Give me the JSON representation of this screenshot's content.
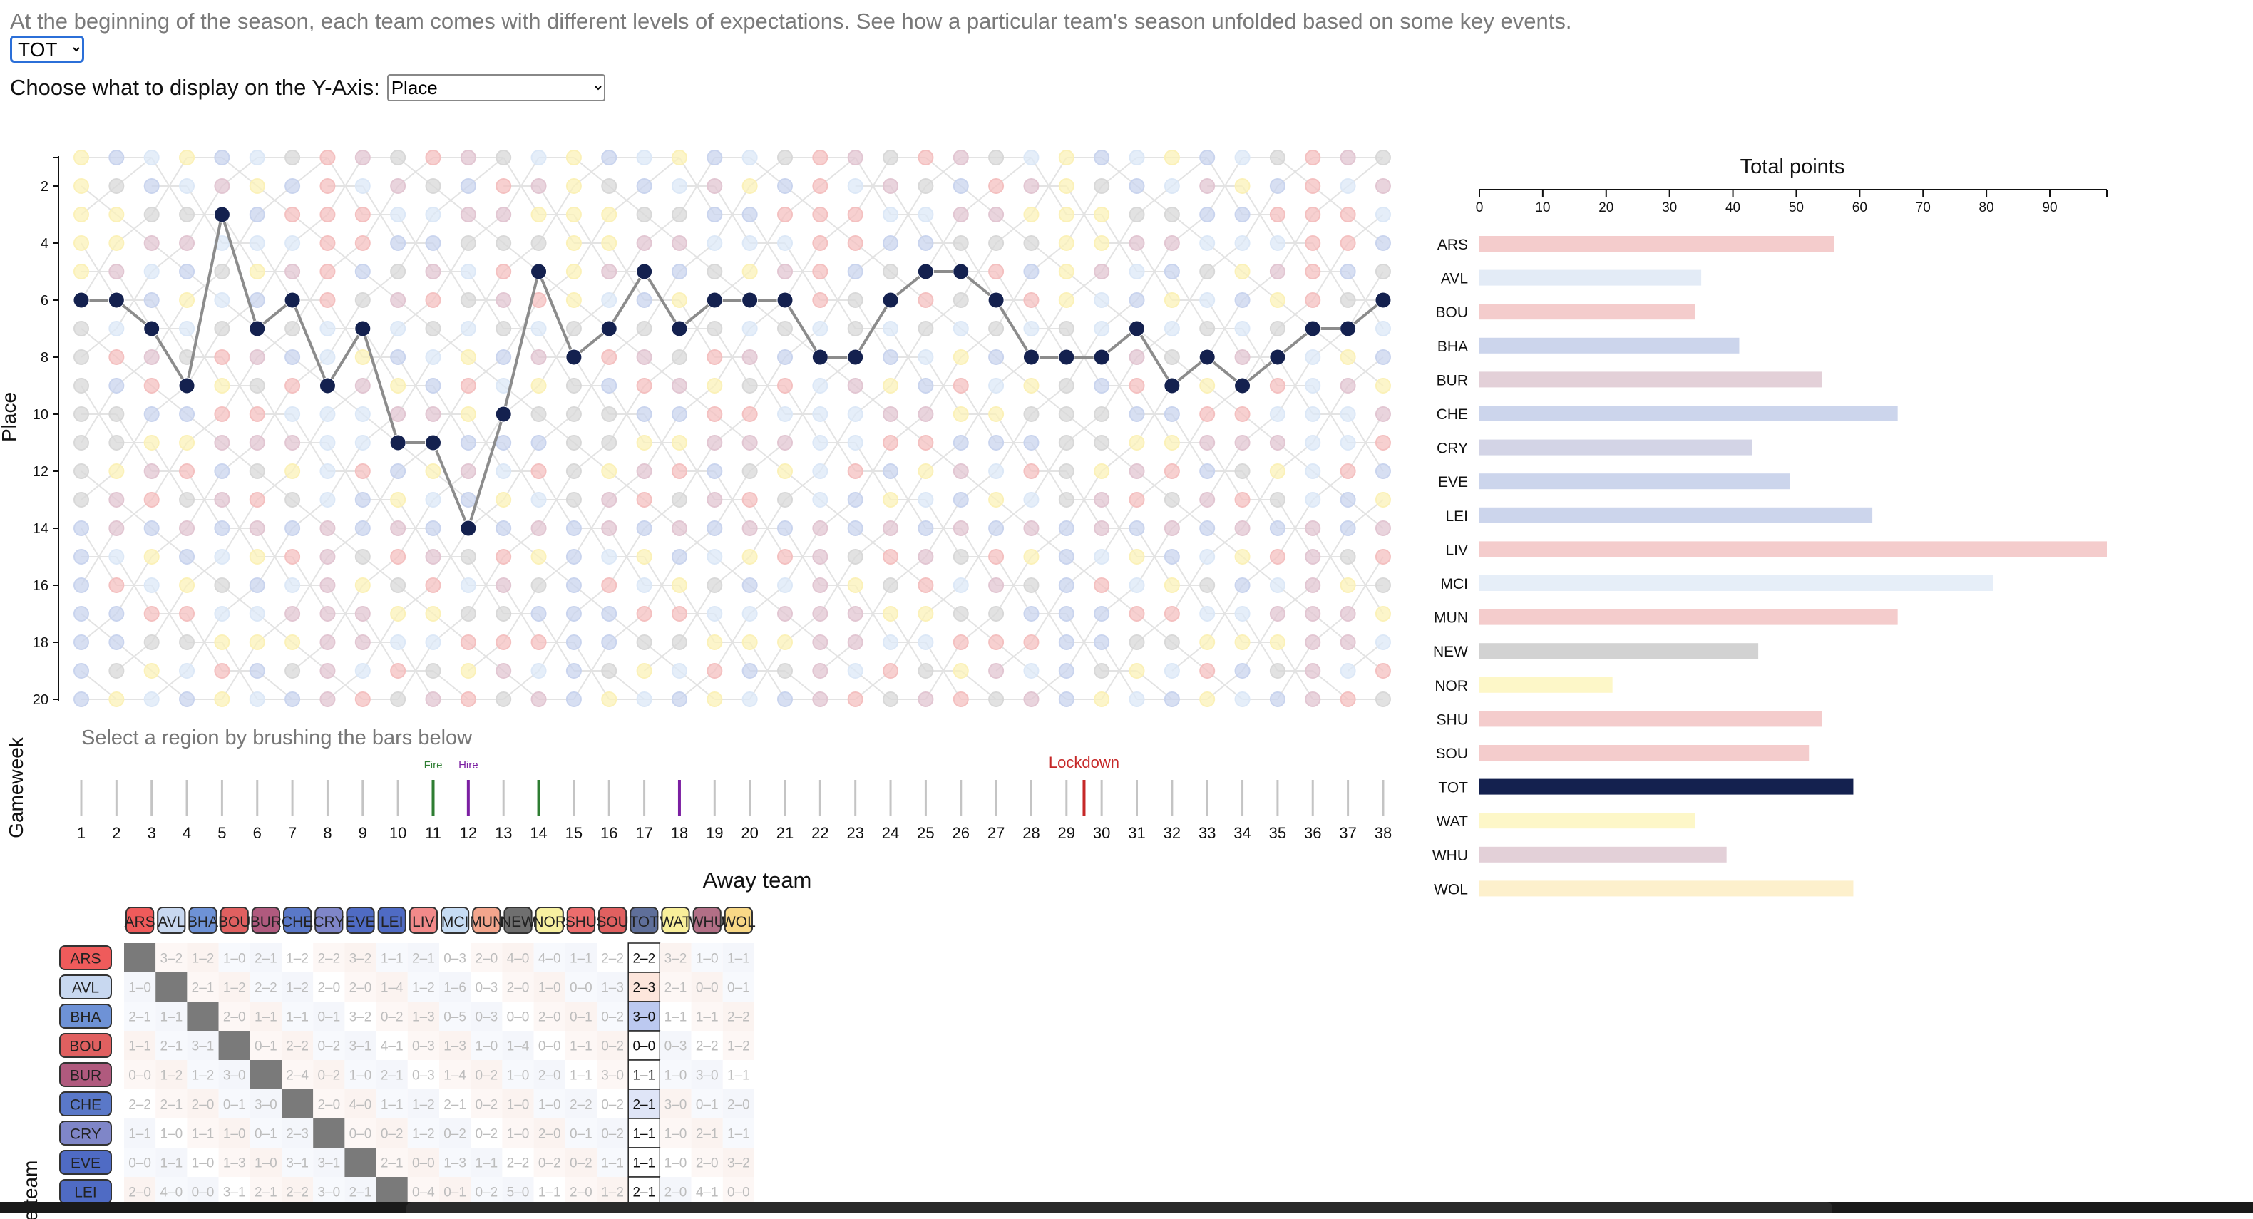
{
  "intro_text": "At the beginning of the season, each team comes with different levels of expectations. See how a particular team's season unfolded based on some key events.",
  "team_selector": {
    "selected": "TOT"
  },
  "yaxis_selector": {
    "label": "Choose what to display on the Y-Axis:",
    "selected": "Place"
  },
  "colors": {
    "highlight": "#14214f",
    "line": "#8c8c8c",
    "fire": "#2e7d32",
    "hire": "#7b1fa2",
    "lockdown": "#c62828"
  },
  "chart_data": [
    {
      "type": "scatter",
      "title": "",
      "ylabel": "Place",
      "xlabel": "",
      "ylim": [
        20,
        1
      ],
      "yticks": [
        2,
        4,
        6,
        8,
        10,
        12,
        14,
        16,
        18,
        20
      ],
      "xlim": [
        1,
        38
      ],
      "highlight_team": "TOT",
      "series": [
        {
          "name": "TOT",
          "x": [
            1,
            2,
            3,
            4,
            5,
            6,
            7,
            8,
            9,
            10,
            11,
            12,
            13,
            14,
            15,
            16,
            17,
            18,
            19,
            20,
            21,
            22,
            23,
            24,
            25,
            26,
            27,
            28,
            29,
            30,
            31,
            32,
            33,
            34,
            35,
            36,
            37,
            38
          ],
          "y": [
            6,
            6,
            7,
            9,
            3,
            7,
            6,
            9,
            7,
            11,
            11,
            14,
            10,
            5,
            8,
            7,
            5,
            7,
            6,
            6,
            6,
            8,
            8,
            6,
            5,
            5,
            6,
            8,
            8,
            8,
            7,
            9,
            8,
            9,
            8,
            7,
            7,
            6
          ]
        }
      ]
    },
    {
      "type": "bar",
      "title": "Total points",
      "xlim": [
        0,
        99
      ],
      "xticks": [
        0,
        10,
        20,
        30,
        40,
        50,
        60,
        70,
        80,
        90
      ],
      "categories": [
        "ARS",
        "AVL",
        "BOU",
        "BHA",
        "BUR",
        "CHE",
        "CRY",
        "EVE",
        "LEI",
        "LIV",
        "MCI",
        "MUN",
        "NEW",
        "NOR",
        "SHU",
        "SOU",
        "TOT",
        "WAT",
        "WHU",
        "WOL"
      ],
      "values": [
        56,
        35,
        34,
        41,
        54,
        66,
        43,
        49,
        62,
        99,
        81,
        66,
        44,
        21,
        54,
        52,
        59,
        34,
        39,
        59
      ],
      "colors": [
        "#f4cccc",
        "#e3ebf6",
        "#f4cccc",
        "#ccd5ec",
        "#e3d0d8",
        "#ccd5ec",
        "#d3d4e6",
        "#ccd5ec",
        "#ccd5ec",
        "#f4cccc",
        "#e6eef8",
        "#f4cccc",
        "#d2d2d2",
        "#fdf7c8",
        "#f4cccc",
        "#f4cccc",
        "#14214f",
        "#fdf7c8",
        "#e3d0d8",
        "#fdf0cc"
      ]
    }
  ],
  "gameweek": {
    "label": "Gameweek",
    "hint": "Select a region by brushing the bars below",
    "weeks": [
      "1",
      "2",
      "3",
      "4",
      "5",
      "6",
      "7",
      "8",
      "9",
      "10",
      "11",
      "12",
      "13",
      "14",
      "15",
      "16",
      "17",
      "18",
      "19",
      "20",
      "21",
      "22",
      "23",
      "24",
      "25",
      "26",
      "27",
      "28",
      "29",
      "30",
      "31",
      "32",
      "33",
      "34",
      "35",
      "36",
      "37",
      "38"
    ],
    "events": [
      {
        "week": 11,
        "label": "Fire",
        "color": "#2e7d32"
      },
      {
        "week": 12,
        "label": "Hire",
        "color": "#7b1fa2"
      },
      {
        "week": 29.5,
        "label": "Lockdown",
        "color": "#c62828"
      }
    ],
    "marked_weeks": [
      {
        "week": 14,
        "color": "#2e7d32"
      },
      {
        "week": 18,
        "color": "#7b1fa2"
      }
    ]
  },
  "matrix": {
    "title": "Away team",
    "ylabel": "Home team",
    "teams": [
      "ARS",
      "AVL",
      "BHA",
      "BOU",
      "BUR",
      "CHE",
      "CRY",
      "EVE",
      "LEI",
      "LIV",
      "MCI",
      "MUN",
      "NEW",
      "NOR",
      "SHU",
      "SOU",
      "TOT",
      "WAT",
      "WHU",
      "WOL"
    ],
    "team_colors": {
      "ARS": "#ef5b5b",
      "AVL": "#c8d8f0",
      "BHA": "#6e92d6",
      "BOU": "#e06060",
      "BUR": "#b05a7e",
      "CHE": "#5a78c8",
      "CRY": "#7f86c8",
      "EVE": "#4f6bc4",
      "LEI": "#4f6bc4",
      "LIV": "#f28a8a",
      "MCI": "#c6dcf4",
      "MUN": "#f3a58c",
      "NEW": "#6f6f6f",
      "NOR": "#f7f0a0",
      "SHU": "#ec6d6d",
      "SOU": "#e06060",
      "TOT": "#5f6f9a",
      "WAT": "#f9ef9a",
      "WHU": "#b26f86",
      "WOL": "#f8d886"
    },
    "rows": [
      {
        "team": "ARS",
        "cells": [
          "",
          "3–2",
          "1–2",
          "1–0",
          "2–1",
          "1–2",
          "2–2",
          "3–2",
          "1–1",
          "2–1",
          "0–3",
          "2–0",
          "4–0",
          "4–0",
          "1–1",
          "2–2",
          "2–2",
          "3–2",
          "1–0",
          "1–1"
        ]
      },
      {
        "team": "AVL",
        "cells": [
          "1–0",
          "",
          "2–1",
          "1–2",
          "2–2",
          "1–2",
          "2–0",
          "2–0",
          "1–4",
          "1–2",
          "1–6",
          "0–3",
          "2–0",
          "1–0",
          "0–0",
          "1–3",
          "2–3",
          "2–1",
          "0–0",
          "0–1"
        ]
      },
      {
        "team": "BHA",
        "cells": [
          "2–1",
          "1–1",
          "",
          "2–0",
          "1–1",
          "1–1",
          "0–1",
          "3–2",
          "0–2",
          "1–3",
          "0–5",
          "0–3",
          "0–0",
          "2–0",
          "0–1",
          "0–2",
          "3–0",
          "1–1",
          "1–1",
          "2–2"
        ]
      },
      {
        "team": "BOU",
        "cells": [
          "1–1",
          "2–1",
          "3–1",
          "",
          "0–1",
          "2–2",
          "0–2",
          "3–1",
          "4–1",
          "0–3",
          "1–3",
          "1–0",
          "1–4",
          "0–0",
          "1–1",
          "0–2",
          "0–0",
          "0–3",
          "2–2",
          "1–2"
        ]
      },
      {
        "team": "BUR",
        "cells": [
          "0–0",
          "1–2",
          "1–2",
          "3–0",
          "",
          "2–4",
          "0–2",
          "1–0",
          "2–1",
          "0–3",
          "1–4",
          "0–2",
          "1–0",
          "2–0",
          "1–1",
          "3–0",
          "1–1",
          "1–0",
          "3–0",
          "1–1"
        ]
      },
      {
        "team": "CHE",
        "cells": [
          "2–2",
          "2–1",
          "2–0",
          "0–1",
          "3–0",
          "",
          "2–0",
          "4–0",
          "1–1",
          "1–2",
          "2–1",
          "0–2",
          "1–0",
          "1–0",
          "2–2",
          "0–2",
          "2–1",
          "3–0",
          "0–1",
          "2–0"
        ]
      },
      {
        "team": "CRY",
        "cells": [
          "1–1",
          "1–0",
          "1–1",
          "1–0",
          "0–1",
          "2–3",
          "",
          "0–0",
          "0–2",
          "1–2",
          "0–2",
          "0–2",
          "1–0",
          "2–0",
          "0–1",
          "0–2",
          "1–1",
          "1–0",
          "2–1",
          "1–1"
        ]
      },
      {
        "team": "EVE",
        "cells": [
          "0–0",
          "1–1",
          "1–0",
          "1–3",
          "1–0",
          "3–1",
          "3–1",
          "",
          "2–1",
          "0–0",
          "1–3",
          "1–1",
          "2–2",
          "0–2",
          "0–2",
          "1–1",
          "1–1",
          "1–0",
          "2–0",
          "3–2"
        ]
      },
      {
        "team": "LEI",
        "cells": [
          "2–0",
          "4–0",
          "0–0",
          "3–1",
          "2–1",
          "2–2",
          "3–0",
          "2–1",
          "",
          "0–4",
          "0–1",
          "0–2",
          "5–0",
          "1–1",
          "2–0",
          "1–2",
          "2–1",
          "2–0",
          "4–1",
          "0–0"
        ]
      }
    ]
  }
}
